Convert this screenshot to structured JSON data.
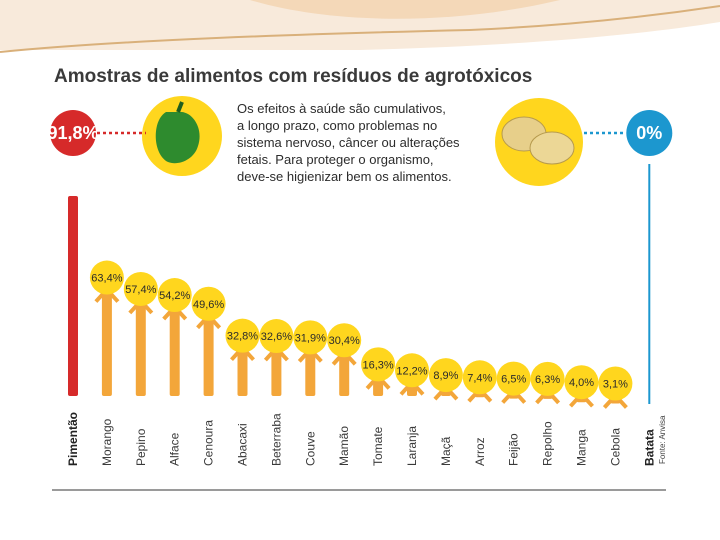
{
  "colors": {
    "accent_red": "#d62a2a",
    "accent_blue": "#1c97cf",
    "yellow": "#ffd61e",
    "bar": "#f3a63a"
  },
  "chart_data": {
    "type": "bar",
    "title": "Amostras de alimentos com resíduos de agrotóxicos",
    "note_lines": [
      "Os efeitos à saúde são cumulativos,",
      "a longo prazo, como problemas no",
      "sistema nervoso, câncer ou alterações",
      "fetais. Para proteger o organismo,",
      "deve-se higienizar bem os alimentos."
    ],
    "source": "Fonte: Anvisa",
    "categories": [
      "Pimentão",
      "Morango",
      "Pepino",
      "Alface",
      "Cenoura",
      "Abacaxi",
      "Beterraba",
      "Couve",
      "Mamão",
      "Tomate",
      "Laranja",
      "Maçã",
      "Arroz",
      "Feijão",
      "Repolho",
      "Manga",
      "Cebola",
      "Batata"
    ],
    "values": [
      91.8,
      63.4,
      57.4,
      54.2,
      49.6,
      32.8,
      32.6,
      31.9,
      30.4,
      16.3,
      12.2,
      8.9,
      7.4,
      6.5,
      6.3,
      4.0,
      3.1,
      0
    ],
    "labels": [
      "91,8%",
      "63,4%",
      "57,4%",
      "54,2%",
      "49,6%",
      "32,8%",
      "32,6%",
      "31,9%",
      "30,4%",
      "16,3%",
      "12,2%",
      "8,9%",
      "7,4%",
      "6,5%",
      "6,3%",
      "4,0%",
      "3,1%",
      "0%"
    ],
    "ylim": [
      0,
      100
    ]
  }
}
